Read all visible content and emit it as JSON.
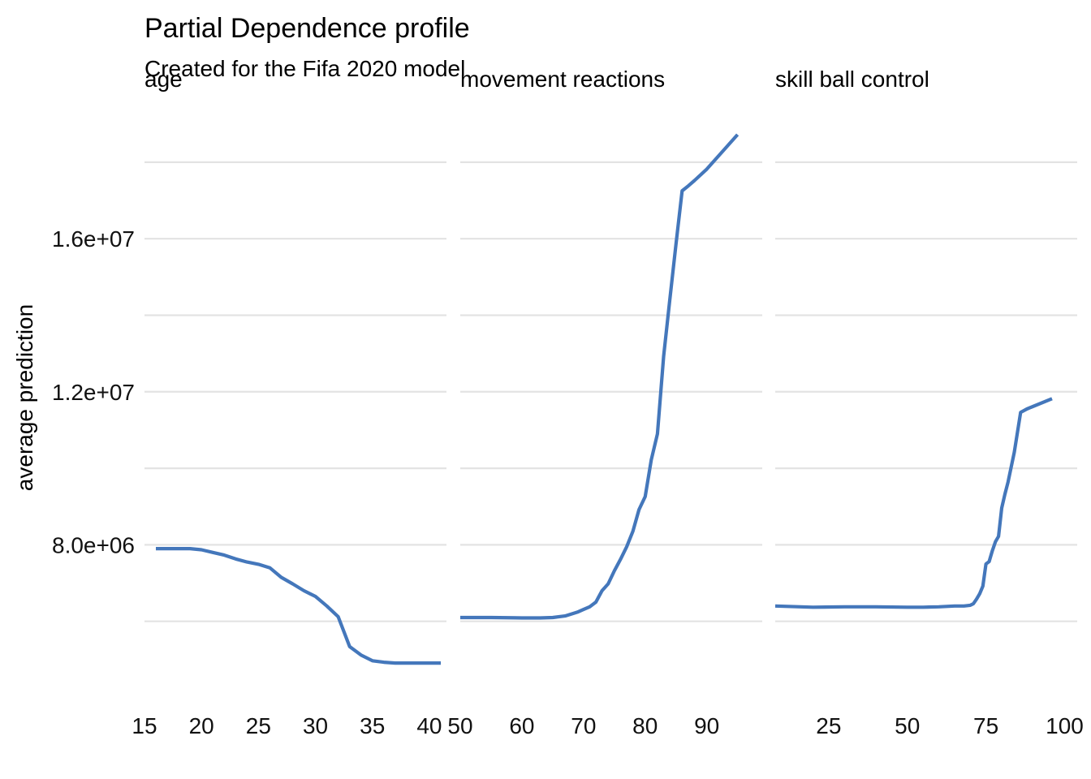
{
  "chart_data": {
    "type": "line",
    "title": "Partial Dependence profile",
    "subtitle": "Created for the Fifa 2020 model",
    "ylabel": "average prediction",
    "ylim": [
      4000000,
      19800000
    ],
    "y_ticks": [
      8000000,
      12000000,
      16000000
    ],
    "y_tick_labels": [
      "8.0e+06",
      "1.2e+07",
      "1.6e+07"
    ],
    "y_minor_grid": [
      6000000,
      10000000,
      14000000,
      18000000
    ],
    "series_color": "#4477bb",
    "grid": true,
    "legend": "none",
    "panels": [
      {
        "name": "age",
        "label": "age",
        "xlim": [
          15,
          41.5
        ],
        "x_ticks": [
          15,
          20,
          25,
          30,
          35,
          40
        ],
        "x_tick_labels": [
          "15",
          "20",
          "25",
          "30",
          "35",
          "40"
        ],
        "x": [
          16,
          17,
          18,
          19,
          20,
          21,
          22,
          23,
          24,
          25,
          26,
          27,
          28,
          29,
          30,
          31,
          32,
          33,
          34,
          35,
          36,
          37,
          38,
          39,
          40,
          41
        ],
        "y": [
          7900000,
          7900000,
          7900000,
          7900000,
          7870000,
          7800000,
          7730000,
          7630000,
          7550000,
          7490000,
          7400000,
          7150000,
          6980000,
          6800000,
          6650000,
          6400000,
          6120000,
          5340000,
          5120000,
          4970000,
          4930000,
          4910000,
          4910000,
          4910000,
          4910000,
          4910000
        ]
      },
      {
        "name": "movement-reactions",
        "label": "movement  reactions",
        "xlim": [
          50,
          99
        ],
        "x_ticks": [
          50,
          60,
          70,
          80,
          90
        ],
        "x_tick_labels": [
          "50",
          "60",
          "70",
          "80",
          "90"
        ],
        "x": [
          50,
          55,
          60,
          63,
          65,
          67,
          68,
          69,
          70,
          71,
          72,
          73,
          74,
          75,
          76,
          77,
          78,
          79,
          80,
          81,
          82,
          83,
          84,
          85,
          86,
          87,
          88,
          90,
          95
        ],
        "y": [
          6100000,
          6100000,
          6090000,
          6090000,
          6100000,
          6140000,
          6190000,
          6240000,
          6310000,
          6380000,
          6500000,
          6800000,
          6980000,
          7320000,
          7620000,
          7950000,
          8350000,
          8920000,
          9260000,
          10220000,
          10900000,
          12920000,
          14400000,
          15850000,
          17250000,
          17380000,
          17520000,
          17820000,
          18720000
        ]
      },
      {
        "name": "skill-ball-control",
        "label": "skill  ball  control",
        "xlim": [
          8,
          104
        ],
        "x_ticks": [
          25,
          50,
          75,
          100
        ],
        "x_tick_labels": [
          "25",
          "50",
          "75",
          "100"
        ],
        "x": [
          8,
          20,
          30,
          40,
          50,
          55,
          60,
          65,
          68,
          70,
          71,
          72,
          73,
          74,
          75,
          76,
          77,
          78,
          79,
          80,
          81,
          82,
          84,
          86,
          88,
          96
        ],
        "y": [
          6400000,
          6370000,
          6380000,
          6380000,
          6370000,
          6370000,
          6380000,
          6400000,
          6400000,
          6420000,
          6460000,
          6580000,
          6720000,
          6920000,
          7500000,
          7560000,
          7840000,
          8080000,
          8220000,
          8960000,
          9320000,
          9640000,
          10420000,
          11460000,
          11550000,
          11820000
        ]
      }
    ]
  }
}
